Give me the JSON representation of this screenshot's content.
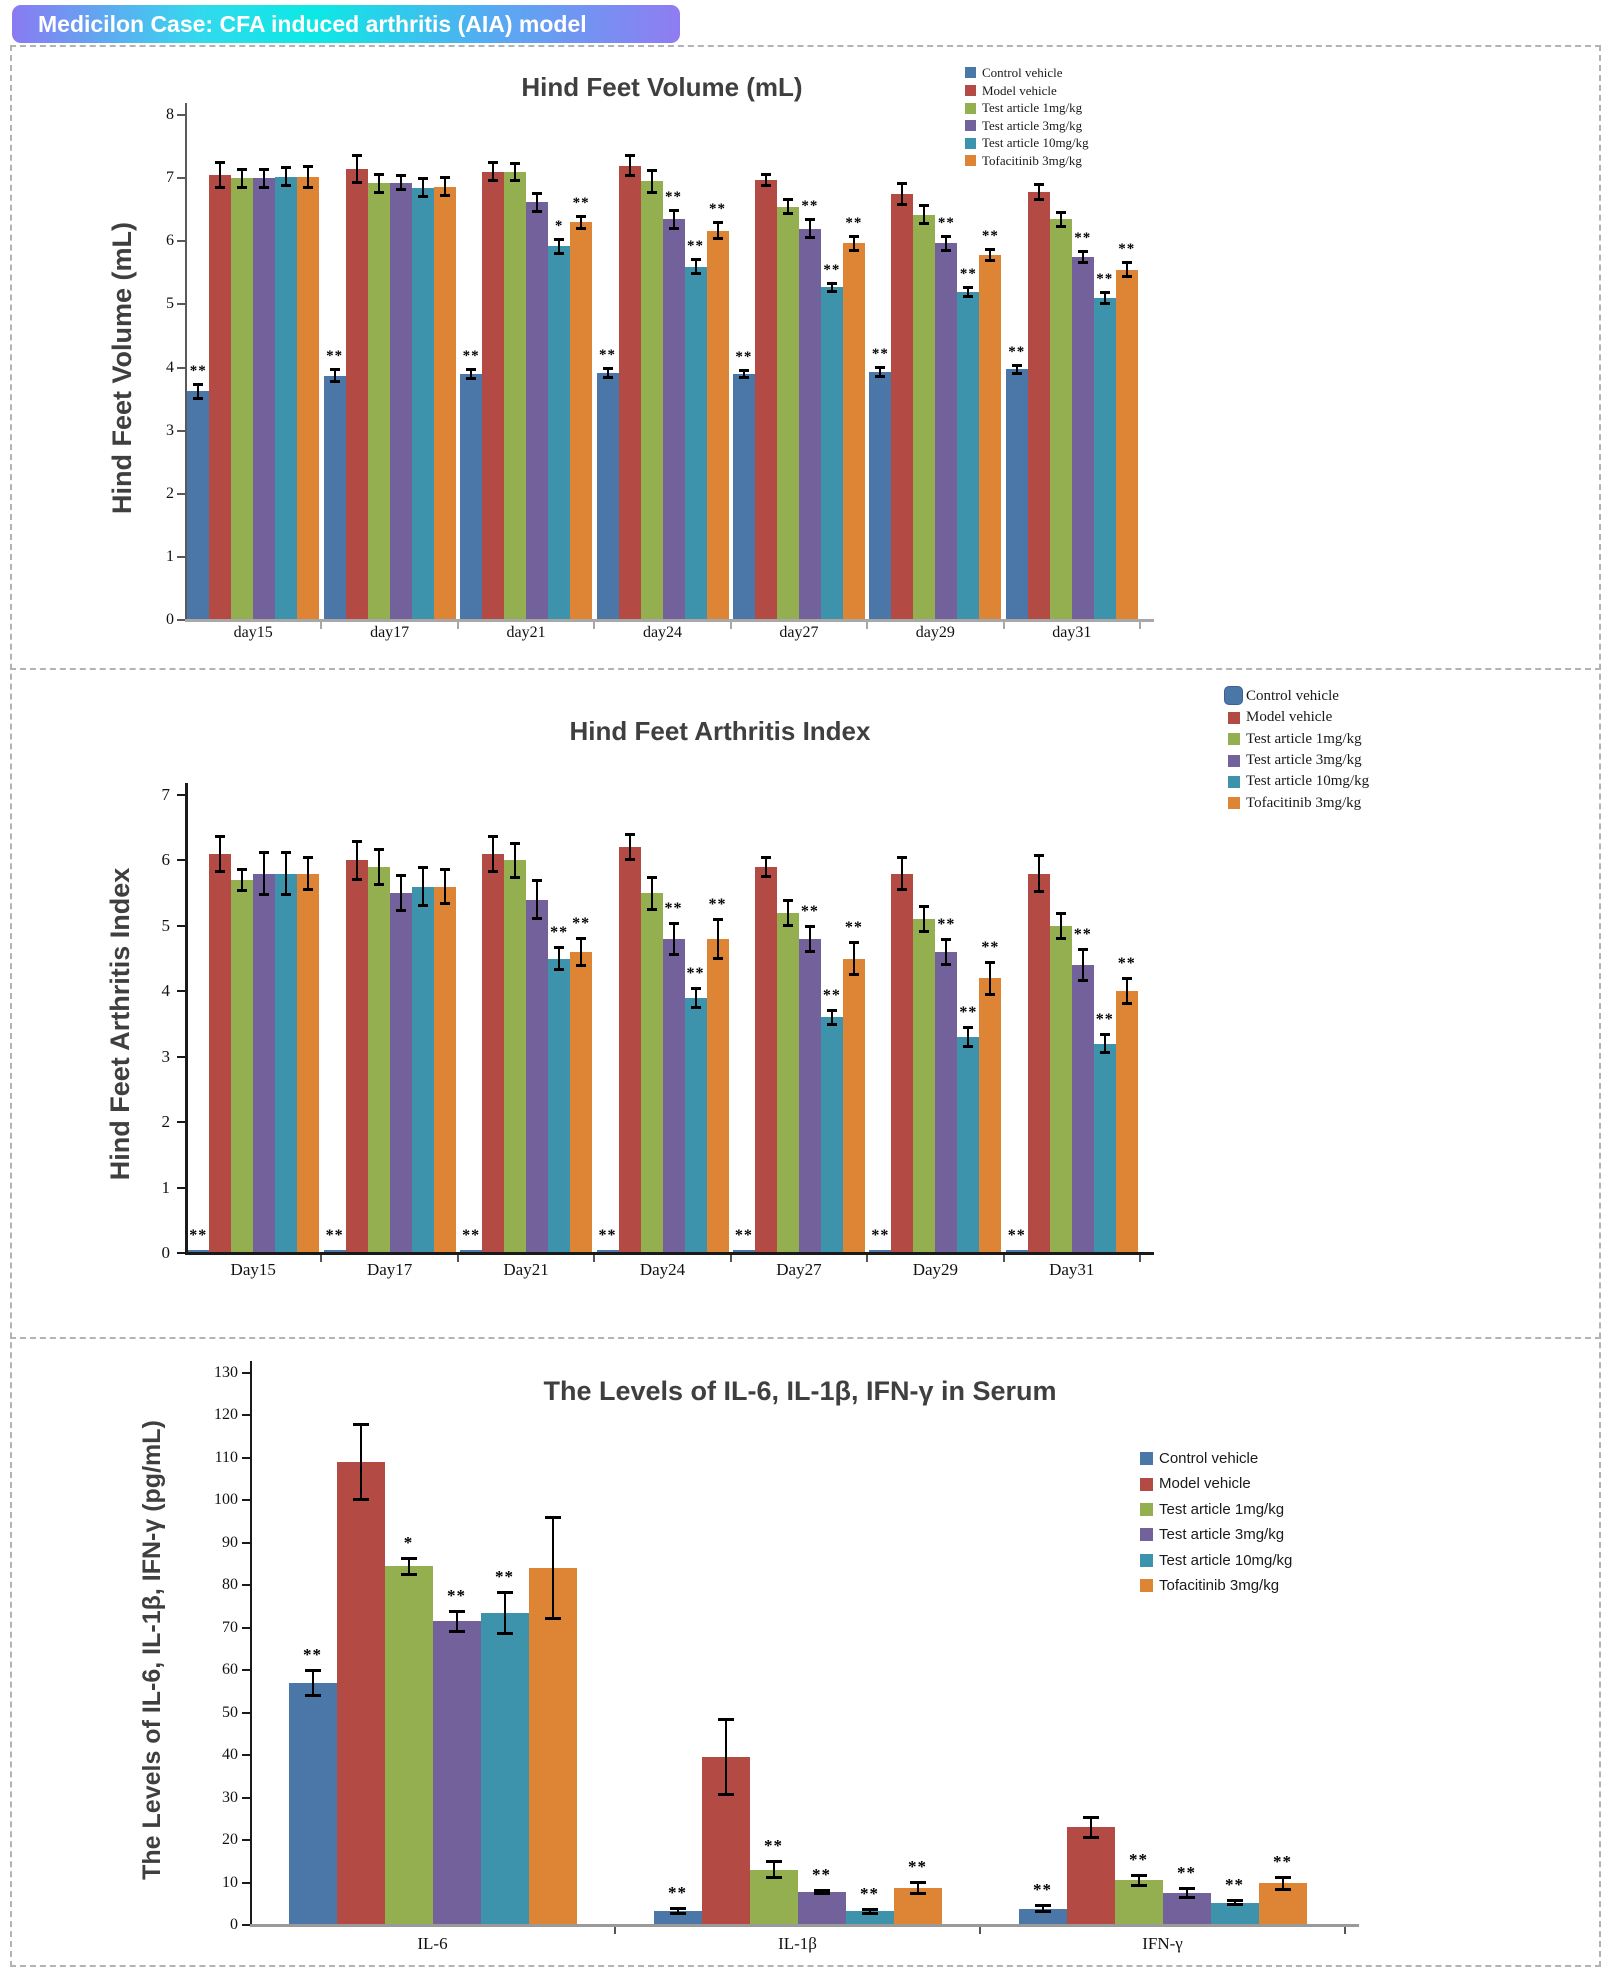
{
  "header": {
    "title": "Medicilon Case: CFA induced arthritis (AIA) model",
    "gradient": [
      "#8a7af2",
      "#0be9e4",
      "#8f7cf2"
    ]
  },
  "colors": {
    "series": [
      "#4A76A8",
      "#B34A44",
      "#94AF4F",
      "#73619B",
      "#3D93AC",
      "#DD8435"
    ],
    "title_text": "#3f3f3f",
    "axis_dark": "#333333",
    "axis_gray": "#a8a8a8"
  },
  "legend_labels": [
    "Control vehicle",
    "Model vehicle",
    "Test article 1mg/kg",
    "Test article 3mg/kg",
    "Test article 10mg/kg",
    "Tofacitinib 3mg/kg"
  ],
  "chart_data": [
    {
      "type": "bar",
      "title": "Hind Feet Volume (mL)",
      "ylabel": "Hind Feet Volume (mL)",
      "ylim": [
        0,
        8
      ],
      "ytick_step": 1,
      "grid": false,
      "legend_position": "top-right",
      "categories": [
        "day15",
        "day17",
        "day21",
        "day24",
        "day27",
        "day29",
        "day31"
      ],
      "series": [
        {
          "name": "Control vehicle",
          "values": [
            3.62,
            3.87,
            3.9,
            3.92,
            3.9,
            3.93,
            3.97
          ],
          "errors": [
            0.12,
            0.1,
            0.08,
            0.08,
            0.06,
            0.08,
            0.07
          ],
          "sig": [
            "**",
            "**",
            "**",
            "**",
            "**",
            "**",
            "**"
          ]
        },
        {
          "name": "Model vehicle",
          "values": [
            7.05,
            7.15,
            7.1,
            7.2,
            6.97,
            6.75,
            6.78
          ],
          "errors": [
            0.2,
            0.22,
            0.15,
            0.17,
            0.1,
            0.17,
            0.12
          ],
          "sig": [
            "",
            "",
            "",
            "",
            "",
            "",
            ""
          ]
        },
        {
          "name": "Test article 1mg/kg",
          "values": [
            7.0,
            6.92,
            7.1,
            6.95,
            6.55,
            6.42,
            6.35
          ],
          "errors": [
            0.15,
            0.15,
            0.14,
            0.18,
            0.12,
            0.15,
            0.12
          ],
          "sig": [
            "",
            "",
            "",
            "",
            "",
            "",
            ""
          ]
        },
        {
          "name": "Test article 3mg/kg",
          "values": [
            7.0,
            6.93,
            6.62,
            6.35,
            6.2,
            5.97,
            5.75
          ],
          "errors": [
            0.15,
            0.12,
            0.15,
            0.15,
            0.15,
            0.12,
            0.1
          ],
          "sig": [
            "",
            "",
            "",
            "**",
            "**",
            "**",
            "**"
          ]
        },
        {
          "name": "Test article 10mg/kg",
          "values": [
            7.02,
            6.85,
            5.92,
            5.6,
            5.27,
            5.2,
            5.1
          ],
          "errors": [
            0.15,
            0.15,
            0.12,
            0.12,
            0.07,
            0.08,
            0.1
          ],
          "sig": [
            "",
            "",
            "*",
            "**",
            "**",
            "**",
            "**"
          ]
        },
        {
          "name": "Tofacitinib 3mg/kg",
          "values": [
            7.02,
            6.86,
            6.3,
            6.17,
            5.97,
            5.78,
            5.55
          ],
          "errors": [
            0.17,
            0.15,
            0.1,
            0.13,
            0.12,
            0.1,
            0.12
          ],
          "sig": [
            "",
            "",
            "**",
            "**",
            "**",
            "**",
            "**"
          ]
        }
      ]
    },
    {
      "type": "bar",
      "title": "Hind Feet Arthritis Index",
      "ylabel": "Hind Feet Arthritis Index",
      "ylim": [
        0,
        7
      ],
      "ytick_step": 1,
      "grid": false,
      "legend_position": "top-right",
      "categories": [
        "Day15",
        "Day17",
        "Day21",
        "Day24",
        "Day27",
        "Day29",
        "Day31"
      ],
      "series": [
        {
          "name": "Control vehicle",
          "values": [
            0.05,
            0.05,
            0.05,
            0.05,
            0.05,
            0.05,
            0.05
          ],
          "errors": [
            0,
            0,
            0,
            0,
            0,
            0,
            0
          ],
          "sig": [
            "**",
            "**",
            "**",
            "**",
            "**",
            "**",
            "**"
          ]
        },
        {
          "name": "Model vehicle",
          "values": [
            6.1,
            6.0,
            6.1,
            6.2,
            5.9,
            5.8,
            5.8
          ],
          "errors": [
            0.28,
            0.3,
            0.28,
            0.2,
            0.15,
            0.25,
            0.28
          ],
          "sig": [
            "",
            "",
            "",
            "",
            "",
            "",
            ""
          ]
        },
        {
          "name": "Test article 1mg/kg",
          "values": [
            5.7,
            5.9,
            6.0,
            5.5,
            5.2,
            5.1,
            5.0
          ],
          "errors": [
            0.17,
            0.28,
            0.27,
            0.25,
            0.2,
            0.2,
            0.2
          ],
          "sig": [
            "",
            "",
            "",
            "",
            "",
            "",
            ""
          ]
        },
        {
          "name": "Test article 3mg/kg",
          "values": [
            5.8,
            5.5,
            5.4,
            4.8,
            4.8,
            4.6,
            4.4
          ],
          "errors": [
            0.33,
            0.27,
            0.3,
            0.25,
            0.2,
            0.2,
            0.25
          ],
          "sig": [
            "",
            "",
            "",
            "**",
            "**",
            "**",
            "**"
          ]
        },
        {
          "name": "Test article 10mg/kg",
          "values": [
            5.8,
            5.6,
            4.5,
            3.9,
            3.6,
            3.3,
            3.2
          ],
          "errors": [
            0.33,
            0.3,
            0.17,
            0.15,
            0.12,
            0.15,
            0.15
          ],
          "sig": [
            "",
            "",
            "**",
            "**",
            "**",
            "**",
            "**"
          ]
        },
        {
          "name": "Tofacitinib 3mg/kg",
          "values": [
            5.8,
            5.6,
            4.6,
            4.8,
            4.5,
            4.2,
            4.0
          ],
          "errors": [
            0.25,
            0.27,
            0.22,
            0.3,
            0.25,
            0.25,
            0.2
          ],
          "sig": [
            "",
            "",
            "**",
            "**",
            "**",
            "**",
            "**"
          ]
        }
      ]
    },
    {
      "type": "bar",
      "title": "The Levels of IL-6, IL-1β, IFN-γ in Serum",
      "ylabel": "The Levels of IL-6, IL-1β, IFN-γ  (pg/mL)",
      "ylim": [
        0,
        130
      ],
      "ytick_step": 10,
      "grid": false,
      "legend_position": "right-inside",
      "categories": [
        "IL-6",
        "IL-1β",
        "IFN-γ"
      ],
      "series": [
        {
          "name": "Control vehicle",
          "values": [
            57.0,
            3.2,
            3.8
          ],
          "errors": [
            3.0,
            0.7,
            0.8
          ],
          "sig": [
            "**",
            "**",
            "**"
          ]
        },
        {
          "name": "Model vehicle",
          "values": [
            109.0,
            39.5,
            23.0
          ],
          "errors": [
            9.0,
            9.0,
            2.5
          ],
          "sig": [
            "",
            "",
            ""
          ]
        },
        {
          "name": "Test article 1mg/kg",
          "values": [
            84.5,
            13.0,
            10.5
          ],
          "errors": [
            2.0,
            2.0,
            1.2
          ],
          "sig": [
            "*",
            "**",
            "**"
          ]
        },
        {
          "name": "Test article 3mg/kg",
          "values": [
            71.5,
            7.8,
            7.6
          ],
          "errors": [
            2.5,
            0.5,
            1.2
          ],
          "sig": [
            "**",
            "**",
            "**"
          ]
        },
        {
          "name": "Test article 10mg/kg",
          "values": [
            73.5,
            3.2,
            5.2
          ],
          "errors": [
            5.0,
            0.5,
            0.6
          ],
          "sig": [
            "**",
            "**",
            "**"
          ]
        },
        {
          "name": "Tofacitinib 3mg/kg",
          "values": [
            84.0,
            8.7,
            9.8
          ],
          "errors": [
            12.0,
            1.5,
            1.5
          ],
          "sig": [
            "",
            "**",
            "**"
          ]
        }
      ]
    }
  ]
}
